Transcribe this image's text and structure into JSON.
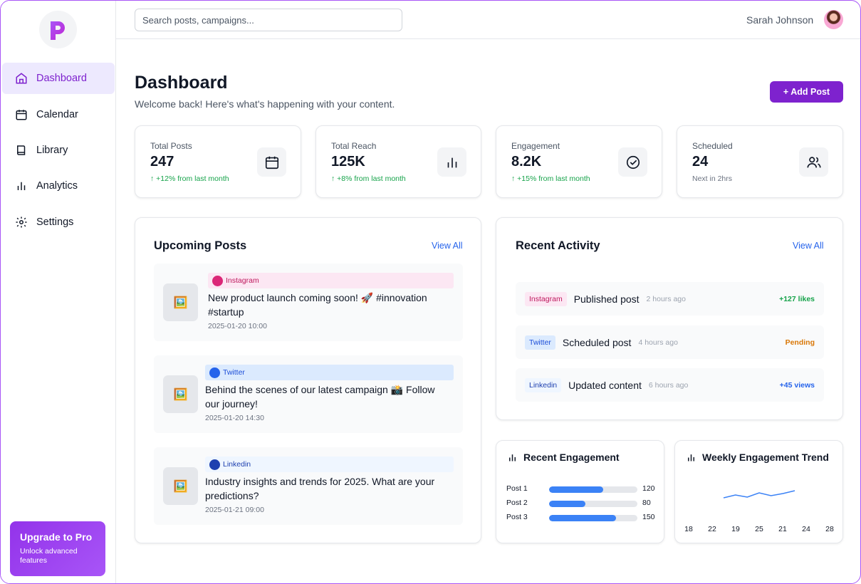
{
  "brand": {
    "logo_letter": "p",
    "accent": "#7e22ce"
  },
  "sidebar": {
    "items": [
      {
        "label": "Dashboard",
        "icon": "home-icon",
        "active": true
      },
      {
        "label": "Calendar",
        "icon": "calendar-icon"
      },
      {
        "label": "Library",
        "icon": "book-icon"
      },
      {
        "label": "Analytics",
        "icon": "bar-chart-icon"
      },
      {
        "label": "Settings",
        "icon": "gear-icon"
      }
    ],
    "upgrade": {
      "title": "Upgrade to Pro",
      "subtitle": "Unlock advanced features"
    }
  },
  "topbar": {
    "search_placeholder": "Search posts, campaigns...",
    "user_name": "Sarah Johnson"
  },
  "header": {
    "title": "Dashboard",
    "subtitle": "Welcome back! Here's what's happening with your content.",
    "add_button": "+ Add Post"
  },
  "stats": [
    {
      "label": "Total Posts",
      "value": "247",
      "change": "↑ +12% from last month",
      "icon": "calendar-icon"
    },
    {
      "label": "Total Reach",
      "value": "125K",
      "change": "↑ +8% from last month",
      "icon": "bar-chart-icon"
    },
    {
      "label": "Engagement",
      "value": "8.2K",
      "change": "↑ +15% from last month",
      "icon": "check-circle-icon"
    },
    {
      "label": "Scheduled",
      "value": "24",
      "change": "Next in 2hrs",
      "icon": "users-icon"
    }
  ],
  "upcoming": {
    "title": "Upcoming Posts",
    "view_all": "View All",
    "posts": [
      {
        "platform": "Instagram",
        "text": "New product launch coming soon! 🚀 #innovation #startup",
        "date": "2025-01-20 10:00",
        "color": "#db2777",
        "tag_bg": "#fce7f3"
      },
      {
        "platform": "Twitter",
        "text": "Behind the scenes of our latest campaign 📸 Follow our journey!",
        "date": "2025-01-20 14:30",
        "color": "#2563eb",
        "tag_bg": "#dbeafe"
      },
      {
        "platform": "Linkedin",
        "text": "Industry insights and trends for 2025. What are your predictions?",
        "date": "2025-01-21 09:00",
        "color": "#1e40af",
        "tag_bg": "#eff6ff"
      }
    ]
  },
  "activity": {
    "title": "Recent Activity",
    "view_all": "View All",
    "items": [
      {
        "platform": "Instagram",
        "action": "Published post",
        "time": "2 hours ago",
        "result": "+127 likes",
        "badge_bg": "#fce7f3",
        "badge_color": "#be185d",
        "result_color": "#16a34a"
      },
      {
        "platform": "Twitter",
        "action": "Scheduled post",
        "time": "4 hours ago",
        "result": "Pending",
        "badge_bg": "#dbeafe",
        "badge_color": "#1d4ed8",
        "result_color": "#d97706"
      },
      {
        "platform": "Linkedin",
        "action": "Updated content",
        "time": "6 hours ago",
        "result": "+45 views",
        "badge_bg": "#eff6ff",
        "badge_color": "#1e40af",
        "result_color": "#2563eb"
      }
    ]
  },
  "recent_engagement": {
    "title": "Recent Engagement",
    "rows": [
      {
        "name": "Post 1",
        "value": 120,
        "fraction": 0.61
      },
      {
        "name": "Post 2",
        "value": 80,
        "fraction": 0.41
      },
      {
        "name": "Post 3",
        "value": 150,
        "fraction": 0.76
      }
    ]
  },
  "chart_data": [
    {
      "type": "bar",
      "title": "Recent Engagement",
      "categories": [
        "Post 1",
        "Post 2",
        "Post 3"
      ],
      "values": [
        120,
        80,
        150
      ]
    },
    {
      "type": "line",
      "title": "Weekly Engagement Trend",
      "x": [
        "18",
        "22",
        "19",
        "25",
        "21",
        "24",
        "28"
      ],
      "y": [
        18,
        22,
        19,
        25,
        21,
        24,
        28
      ],
      "grid": false
    }
  ]
}
